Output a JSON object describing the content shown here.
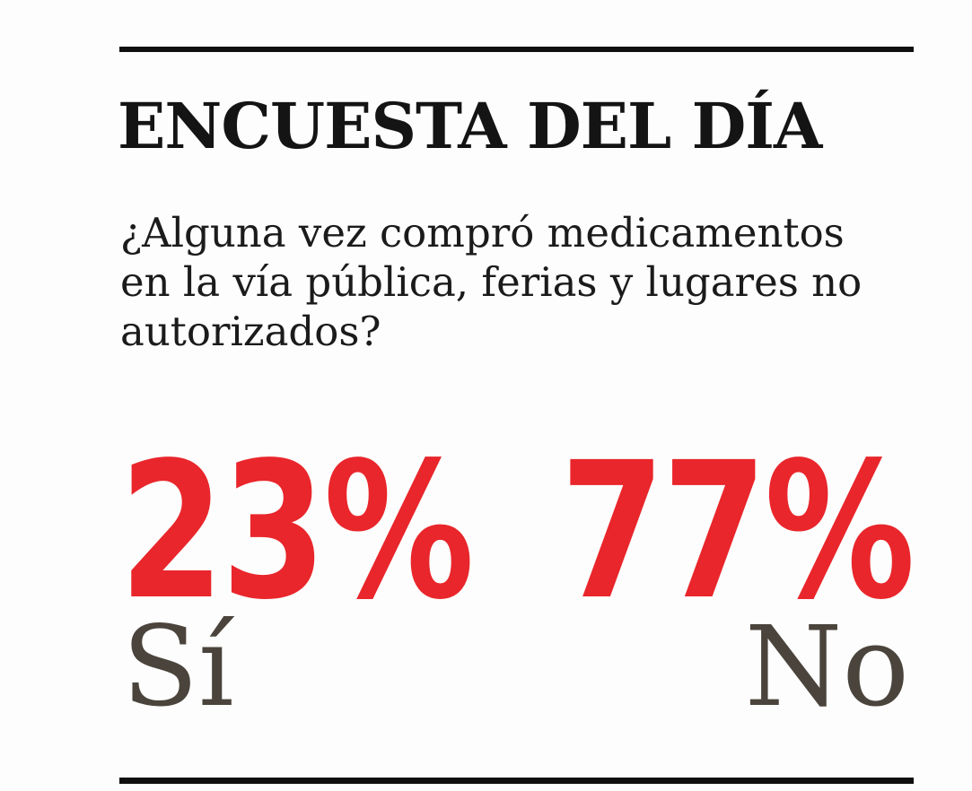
{
  "colors": {
    "background": "#fdfdfd",
    "rule": "#0f0f0f",
    "heading": "#141414",
    "text": "#1b1b1b",
    "accent": "#e9262b",
    "label": "#4a443c"
  },
  "poll": {
    "title": "ENCUESTA DEL DÍA",
    "question": "¿Alguna vez compró medicamentos en la vía pública, ferias y lugares no autorizados?",
    "question_lines": [
      "¿Alguna vez compró medicamentos",
      "en la vía pública, ferias y lugares no",
      "autorizados?"
    ],
    "results": [
      {
        "value": "23%",
        "label": "Sí"
      },
      {
        "value": "77%",
        "label": "No"
      }
    ]
  },
  "chart_data": {
    "type": "table",
    "title": "ENCUESTA DEL DÍA",
    "subtitle": "¿Alguna vez compró medicamentos en la vía pública, ferias y lugares no autorizados?",
    "categories": [
      "Sí",
      "No"
    ],
    "values": [
      23,
      77
    ],
    "unit": "%",
    "value_color": "#e9262b",
    "label_color": "#4a443c",
    "layout": "two large percentage figures side by side, category labels beneath, horizontal black rules above and below"
  }
}
